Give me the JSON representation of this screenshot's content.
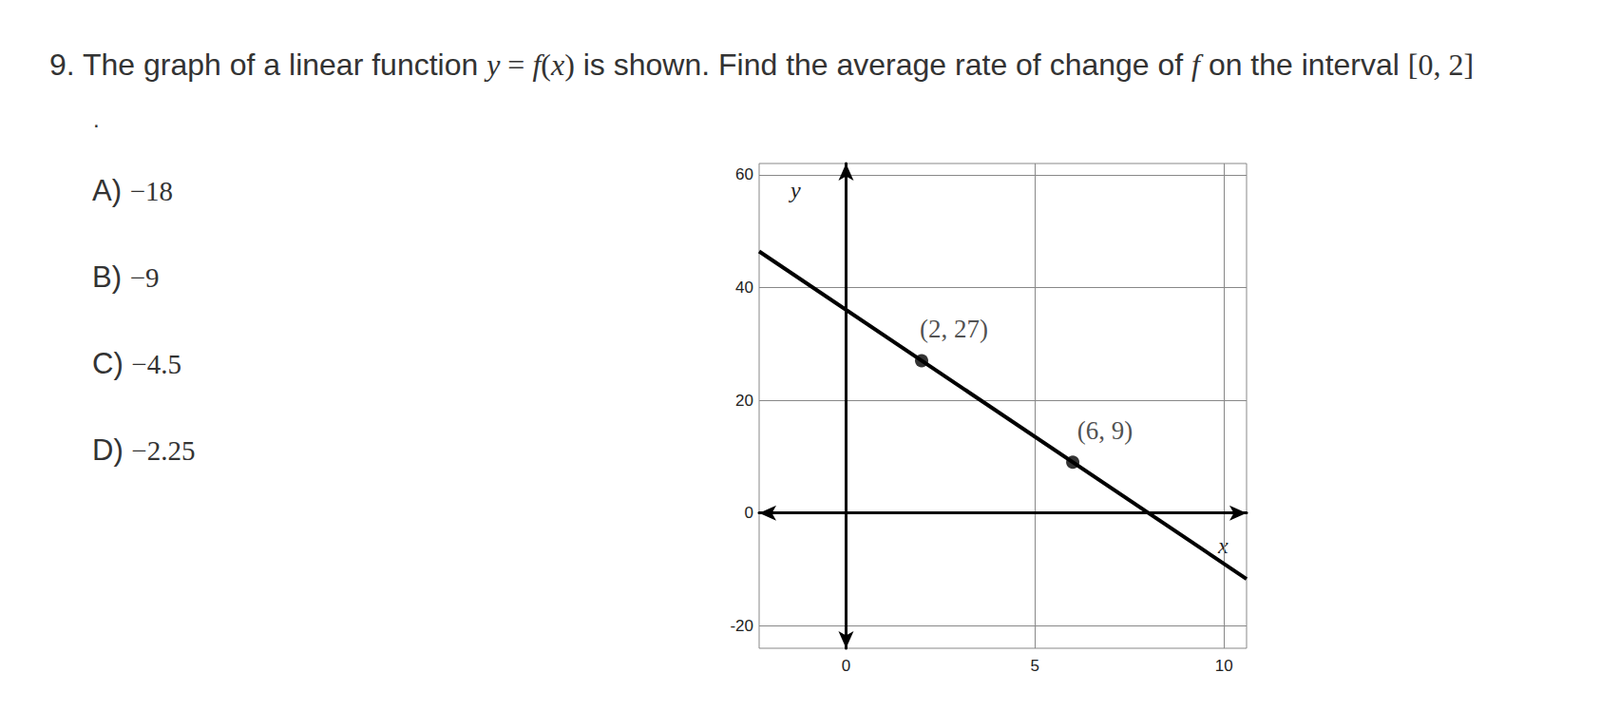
{
  "question": {
    "number": "9.",
    "prompt": [
      {
        "text": "The graph of a linear function ",
        "math": false
      },
      {
        "text": "y = f(x)",
        "math": true
      },
      {
        "text": " is shown. Find the average rate of change of ",
        "math": false
      },
      {
        "text": "f",
        "math": true
      },
      {
        "text": " on the interval ",
        "math": false
      },
      {
        "text": "[0, 2]",
        "math": true
      }
    ],
    "continuation": ".",
    "options": [
      {
        "label": "A)",
        "text": "−18"
      },
      {
        "label": "B)",
        "text": "−9"
      },
      {
        "label": "C)",
        "text": "−4.5"
      },
      {
        "label": "D)",
        "text": "−2.25"
      }
    ]
  },
  "chart_data": {
    "type": "line",
    "xlabel": "x",
    "ylabel": "y",
    "x": [
      -2.3,
      10.6
    ],
    "values": [
      46.4,
      -11.7
    ],
    "color": "#000000",
    "points": [
      {
        "x": 2,
        "y": 27,
        "label": "(2, 27)"
      },
      {
        "x": 6,
        "y": 9,
        "label": "(6, 9)"
      }
    ],
    "xlim": [
      -2.3,
      10.6
    ],
    "ylim": [
      -24,
      62
    ],
    "xticks": [
      0,
      5,
      10
    ],
    "yticks": [
      -20,
      0,
      20,
      40,
      60
    ],
    "grid": true
  }
}
